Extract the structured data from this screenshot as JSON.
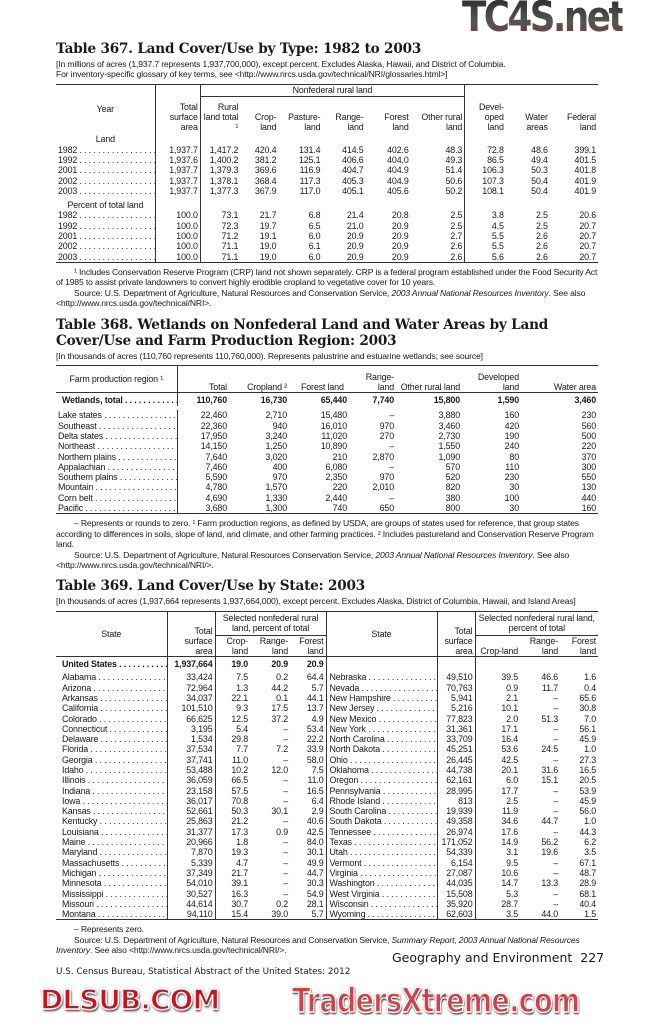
{
  "t367": {
    "title": "Table 367. Land Cover/Use by Type: 1982 to 2003",
    "note1": "[In millions of acres (1,937.7 represents 1,937,700,000), except percent. Excludes Alaska, Hawaii, and District of Columbia.",
    "note2": "For inventory-specific glossary of key terms, see <http://www.nrcs.usda.gov/technical/NRI/glossaries.html>]",
    "group": "Nonfederal rural land",
    "cols": [
      "Year",
      "Total surface area",
      "Rural land total ¹",
      "Crop-land",
      "Pasture-land",
      "Range-land",
      "Forest land",
      "Other rural land",
      "Devel-oped land",
      "Water areas",
      "Federal land"
    ],
    "sections": [
      {
        "label": "Land",
        "rows": [
          [
            "1982",
            "1,937.7",
            "1,417.2",
            "420.4",
            "131.4",
            "414.5",
            "402.6",
            "48.3",
            "72.8",
            "48.6",
            "399.1"
          ],
          [
            "1992",
            "1,937.6",
            "1,400.2",
            "381.2",
            "125.1",
            "406.6",
            "404.0",
            "49.3",
            "86.5",
            "49.4",
            "401.5"
          ],
          [
            "2001",
            "1,937.7",
            "1,379.3",
            "369.6",
            "116.9",
            "404.7",
            "404.9",
            "51.4",
            "106.3",
            "50.3",
            "401.8"
          ],
          [
            "2002",
            "1,937.7",
            "1,378.1",
            "368.4",
            "117.3",
            "405.3",
            "404.9",
            "50.6",
            "107.3",
            "50.4",
            "401.9"
          ],
          [
            "2003",
            "1,937.7",
            "1,377.3",
            "367.9",
            "117.0",
            "405.1",
            "405.6",
            "50.2",
            "108.1",
            "50.4",
            "401.9"
          ]
        ]
      },
      {
        "label": "Percent of total land",
        "rows": [
          [
            "1982",
            "100.0",
            "73.1",
            "21.7",
            "6.8",
            "21.4",
            "20.8",
            "2.5",
            "3.8",
            "2.5",
            "20.6"
          ],
          [
            "1992",
            "100.0",
            "72.3",
            "19.7",
            "6.5",
            "21.0",
            "20.9",
            "2.5",
            "4.5",
            "2.5",
            "20.7"
          ],
          [
            "2001",
            "100.0",
            "71.2",
            "19.1",
            "6.0",
            "20.9",
            "20.9",
            "2.7",
            "5.5",
            "2.6",
            "20.7"
          ],
          [
            "2002",
            "100.0",
            "71.1",
            "19.0",
            "6.1",
            "20.9",
            "20.9",
            "2.6",
            "5.5",
            "2.6",
            "20.7"
          ],
          [
            "2003",
            "100.0",
            "71.1",
            "19.0",
            "6.0",
            "20.9",
            "20.9",
            "2.6",
            "5.6",
            "2.6",
            "20.7"
          ]
        ]
      }
    ],
    "footnote": "¹ Includes Conservation Reserve Program (CRP) land not shown separately. CRP is a federal program established under the Food Security Act of 1985 to assist private landowners to convert highly erodible cropland to vegetative cover for 10 years.",
    "source_pre": "Source: U.S. Department of Agriculture, Natural Resources and Conservation Service, ",
    "source_it": "2003 Annual National Resources Inventory",
    "source_post": ". See also <http://www.nrcs.usda.gov/technical/NRI>."
  },
  "t368": {
    "title": "Table 368. Wetlands on Nonfederal Land and Water Areas by Land Cover/Use and Farm Production Region: 2003",
    "note": "[In thousands of acres (110,760 represents 110,760,000). Represents palustrine and estuarine wetlands; see source]",
    "cols": [
      "Farm production region ¹",
      "Total",
      "Cropland ²",
      "Forest land",
      "Range-land",
      "Other rural land",
      "Developed land",
      "Water area"
    ],
    "total": [
      "Wetlands, total",
      "110,760",
      "16,730",
      "65,440",
      "7,740",
      "15,800",
      "1,590",
      "3,460"
    ],
    "rows": [
      [
        "Lake states",
        "22,460",
        "2,710",
        "15,480",
        "–",
        "3,880",
        "160",
        "230"
      ],
      [
        "Southeast",
        "22,360",
        "940",
        "16,010",
        "970",
        "3,460",
        "420",
        "560"
      ],
      [
        "Delta states",
        "17,950",
        "3,240",
        "11,020",
        "270",
        "2,730",
        "190",
        "500"
      ],
      [
        "Northeast",
        "14,150",
        "1,250",
        "10,890",
        "–",
        "1,550",
        "240",
        "220"
      ],
      [
        "Northern plains",
        "7,640",
        "3,020",
        "210",
        "2,870",
        "1,090",
        "80",
        "370"
      ],
      [
        "Appalachian",
        "7,460",
        "400",
        "6,080",
        "–",
        "570",
        "110",
        "300"
      ],
      [
        "Southern plains",
        "5,590",
        "970",
        "2,350",
        "970",
        "520",
        "230",
        "550"
      ],
      [
        "Mountain",
        "4,780",
        "1,570",
        "220",
        "2,010",
        "820",
        "30",
        "130"
      ],
      [
        "Corn belt",
        "4,690",
        "1,330",
        "2,440",
        "–",
        "380",
        "100",
        "440"
      ],
      [
        "Pacific",
        "3,680",
        "1,300",
        "740",
        "650",
        "800",
        "30",
        "160"
      ]
    ],
    "footnote1": "– Represents or rounds to zero. ¹ Farm production regions, as defined by USDA, are groups of states used for reference, that group states according to differences in soils, slope of land, and climate, and other farming practices. ² Includes pastureland and Conservation Reserve Program land.",
    "source_pre": "Source: U.S. Department of Agriculture, Natural Resources Conservation Service, ",
    "source_it": "2003 Annual National Resources Inventory",
    "source_post": ". See also <http://www.nrcs.usda.gov/technical/NRI/>."
  },
  "t369": {
    "title": "Table 369. Land Cover/Use by State: 2003",
    "note": "[In thousands of acres (1,937,664 represents 1,937,664,000), except percent. Excludes Alaska, District of Columbia, Hawaii, and Island Areas]",
    "group": "Selected nonfederal rural land, percent of total",
    "cols": [
      "State",
      "Total surface area",
      "Crop-land",
      "Range-land",
      "Forest land"
    ],
    "us": [
      "United States",
      "1,937,664",
      "19.0",
      "20.9",
      "20.9"
    ],
    "left": [
      [
        "Alabama",
        "33,424",
        "7.5",
        "0.2",
        "64.4"
      ],
      [
        "Arizona",
        "72,964",
        "1.3",
        "44.2",
        "5.7"
      ],
      [
        "Arkansas",
        "34,037",
        "22.1",
        "0.1",
        "44.1"
      ],
      [
        "California",
        "101,510",
        "9.3",
        "17.5",
        "13.7"
      ],
      [
        "Colorado",
        "66,625",
        "12.5",
        "37.2",
        "4.9"
      ],
      [
        "Connecticut",
        "3,195",
        "5.4",
        "–",
        "53.4"
      ],
      [
        "Delaware",
        "1,534",
        "29.8",
        "–",
        "22.2"
      ],
      [
        "Florida",
        "37,534",
        "7.7",
        "7.2",
        "33.9"
      ],
      [
        "Georgia",
        "37,741",
        "11.0",
        "–",
        "58.0"
      ],
      [
        "Idaho",
        "53,488",
        "10.2",
        "12.0",
        "7.5"
      ],
      [
        "Illinois",
        "36,059",
        "66.5",
        "–",
        "11.0"
      ],
      [
        "Indiana",
        "23,158",
        "57.5",
        "–",
        "16.5"
      ],
      [
        "Iowa",
        "36,017",
        "70.8",
        "–",
        "6.4"
      ],
      [
        "Kansas",
        "52,661",
        "50.3",
        "30.1",
        "2.9"
      ],
      [
        "Kentucky",
        "25,863",
        "21.2",
        "–",
        "40.6"
      ],
      [
        "Louisiana",
        "31,377",
        "17.3",
        "0.9",
        "42.5"
      ],
      [
        "Maine",
        "20,966",
        "1.8",
        "–",
        "84.0"
      ],
      [
        "Maryland",
        "7,870",
        "19.3",
        "–",
        "30.1"
      ],
      [
        "Massachusetts",
        "5,339",
        "4.7",
        "–",
        "49.9"
      ],
      [
        "Michigan",
        "37,349",
        "21.7",
        "–",
        "44.7"
      ],
      [
        "Minnesota",
        "54,010",
        "39.1",
        "–",
        "30.3"
      ],
      [
        "Mississippi",
        "30,527",
        "16.3",
        "–",
        "54.9"
      ],
      [
        "Missouri",
        "44,614",
        "30.7",
        "0.2",
        "28.1"
      ],
      [
        "Montana",
        "94,110",
        "15.4",
        "39.0",
        "5.7"
      ]
    ],
    "right": [
      [
        "Nebraska",
        "49,510",
        "39.5",
        "46.6",
        "1.6"
      ],
      [
        "Nevada",
        "70,763",
        "0.9",
        "11.7",
        "0.4"
      ],
      [
        "New Hampshire",
        "5,941",
        "2.1",
        "–",
        "65.6"
      ],
      [
        "New Jersey",
        "5,216",
        "10.1",
        "–",
        "30.8"
      ],
      [
        "New Mexico",
        "77,823",
        "2.0",
        "51.3",
        "7.0"
      ],
      [
        "New York",
        "31,361",
        "17.1",
        "–",
        "56.1"
      ],
      [
        "North Carolina",
        "33,709",
        "16.4",
        "–",
        "45.9"
      ],
      [
        "North Dakota",
        "45,251",
        "53.6",
        "24.5",
        "1.0"
      ],
      [
        "Ohio",
        "26,445",
        "42.5",
        "–",
        "27.3"
      ],
      [
        "Oklahoma",
        "44,738",
        "20.1",
        "31.6",
        "16.5"
      ],
      [
        "Oregon",
        "62,161",
        "6.0",
        "15.1",
        "20.5"
      ],
      [
        "Pennsylvania",
        "28,995",
        "17.7",
        "–",
        "53.9"
      ],
      [
        "Rhode Island",
        "813",
        "2.5",
        "–",
        "45.9"
      ],
      [
        "South Carolina",
        "19,939",
        "11.9",
        "–",
        "56.0"
      ],
      [
        "South Dakota",
        "49,358",
        "34.6",
        "44.7",
        "1.0"
      ],
      [
        "Tennessee",
        "26,974",
        "17.6",
        "–",
        "44.3"
      ],
      [
        "Texas",
        "171,052",
        "14.9",
        "56.2",
        "6.2"
      ],
      [
        "Utah",
        "54,339",
        "3.1",
        "19.6",
        "3.5"
      ],
      [
        "Vermont",
        "6,154",
        "9.5",
        "–",
        "67.1"
      ],
      [
        "Virginia",
        "27,087",
        "10.6",
        "–",
        "48.7"
      ],
      [
        "Washington",
        "44,035",
        "14.7",
        "13.3",
        "28.9"
      ],
      [
        "West Virginia",
        "15,508",
        "5.3",
        "–",
        "68.1"
      ],
      [
        "Wisconsin",
        "35,920",
        "28.7",
        "–",
        "40.4"
      ],
      [
        "Wyoming",
        "62,603",
        "3.5",
        "44.0",
        "1.5"
      ]
    ],
    "footnote": "– Represents zero.",
    "source_pre": "Source: U.S. Department of Agriculture, Natural Resources and Conservation Service, ",
    "source_it": "Summary Report, 2003 Annual National Resources Inventory",
    "source_post": ". See also <http://www.nrcs.usda.gov/technical/NRI/>."
  },
  "footer": {
    "section": "Geography and Environment",
    "page": "227",
    "publication": "U.S. Census Bureau, Statistical Abstract of the United States: 2012"
  },
  "watermarks": {
    "top": "TC4S.net",
    "middle": "DLSUB.COM",
    "bottom": "TradersXtreme.com",
    "red": "#c8141c"
  }
}
